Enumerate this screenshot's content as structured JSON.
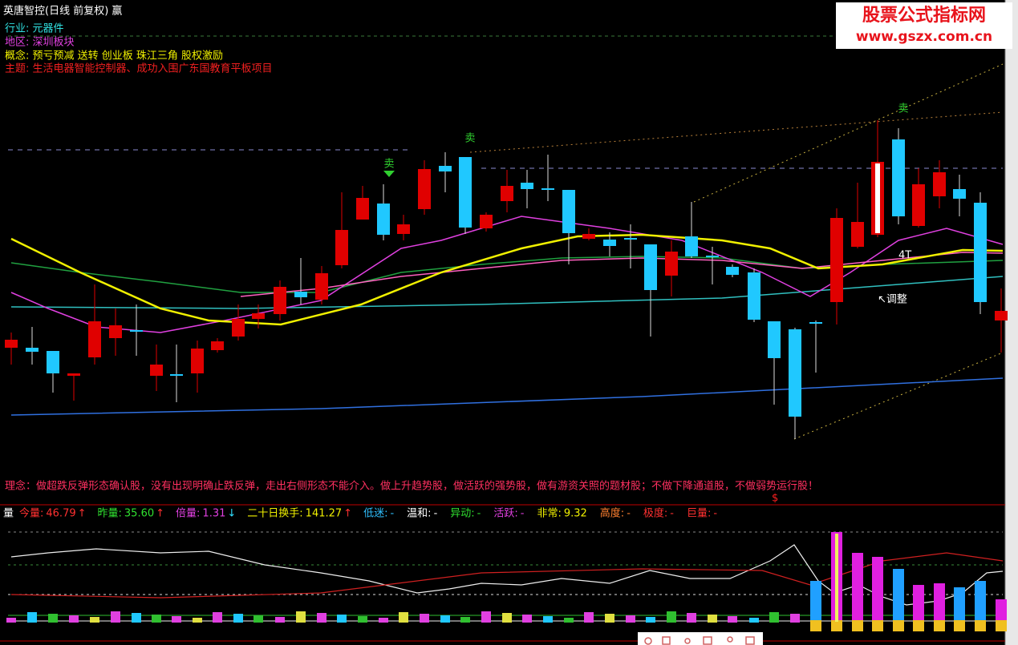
{
  "header": {
    "title": "英唐智控(日线 前复权) 赢",
    "info": [
      "行业: 元器件",
      "地区: 深圳板块",
      "概念: 预亏预减 送转 创业板 珠江三角 股权激励",
      "主题: 生活电器智能控制器、成功入围广东国教育平板项目"
    ]
  },
  "watermark": {
    "name": "股票公式指标网",
    "url": "www.gszx.com.cn"
  },
  "annotations": {
    "sell": [
      "卖",
      "卖",
      "卖"
    ],
    "tag": "4T",
    "adjust": "↖调整",
    "dollar": "$"
  },
  "philosophy": "理念：做超跌反弹形态确认股，没有出现明确止跌反弹，走出右侧形态不能介入。做上升趋势股，做活跃的强势股，做有游资关照的题材股；不做下降通道股，不做弱势运行股！",
  "indicator": {
    "name": "量",
    "items": [
      {
        "label": "今量:",
        "value": "46.79",
        "arrow": "↑"
      },
      {
        "label": "昨量:",
        "value": "35.60",
        "arrow": "↑"
      },
      {
        "label": "倍量:",
        "value": "1.31",
        "arrow": "↓"
      },
      {
        "label": "二十日换手:",
        "value": "141.27",
        "arrow": "↑"
      },
      {
        "label": "低迷:",
        "value": "-"
      },
      {
        "label": "温和:",
        "value": "-"
      },
      {
        "label": "异动:",
        "value": "-"
      },
      {
        "label": "活跃:",
        "value": "-"
      },
      {
        "label": "非常:",
        "value": "9.32"
      },
      {
        "label": "高度:",
        "value": "-"
      },
      {
        "label": "极度:",
        "value": "-"
      },
      {
        "label": "巨量:",
        "value": "-"
      }
    ]
  }
}
